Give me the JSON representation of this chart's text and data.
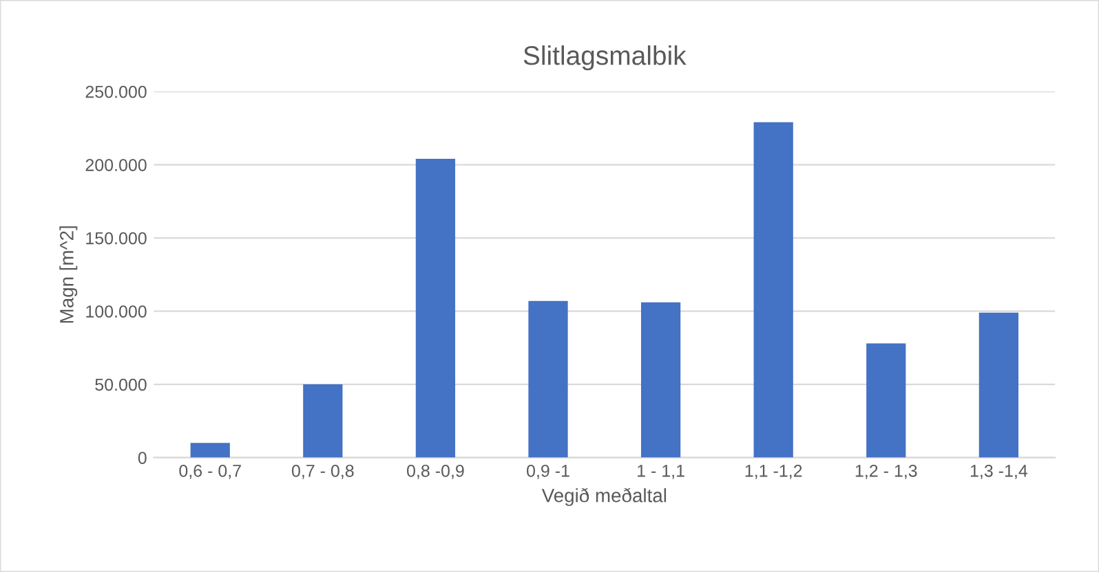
{
  "chart_data": {
    "type": "bar",
    "title": "Slitlagsmalbik",
    "xlabel": "Vegið meðaltal",
    "ylabel": "Magn [m^2]",
    "categories": [
      "0,6 - 0,7",
      "0,7 - 0,8",
      "0,8 -0,9",
      "0,9 -1",
      "1 - 1,1",
      "1,1 -1,2",
      "1,2 - 1,3",
      "1,3 -1,4"
    ],
    "values": [
      10000,
      50000,
      204000,
      107000,
      106000,
      229000,
      78000,
      99000
    ],
    "color": "#4472c4",
    "ylim": [
      0,
      250000
    ],
    "yticks": [
      {
        "value": 0,
        "label": "0"
      },
      {
        "value": 50000,
        "label": "50.000"
      },
      {
        "value": 100000,
        "label": "100.000"
      },
      {
        "value": 150000,
        "label": "150.000"
      },
      {
        "value": 200000,
        "label": "200.000"
      },
      {
        "value": 250000,
        "label": "250.000"
      }
    ],
    "grid": "y"
  }
}
